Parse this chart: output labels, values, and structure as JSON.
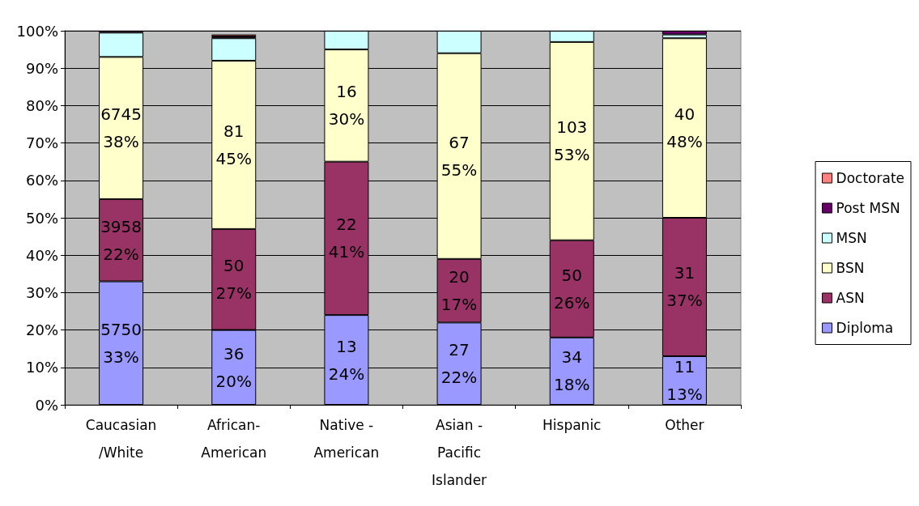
{
  "chart_data": {
    "type": "bar",
    "stacked": true,
    "categories": [
      "Caucasian\n/White",
      "African-\nAmerican",
      "Native -\nAmerican",
      "Asian -\nPacific\nIslander",
      "Hispanic",
      "Other"
    ],
    "series": [
      {
        "name": "Diploma",
        "color": "#9999ff",
        "values": [
          33,
          20,
          24,
          22,
          18,
          13
        ],
        "value_labels": [
          "5750\n33%",
          "36\n20%",
          "13\n24%",
          "27\n22%",
          "34\n18%",
          "11\n13%"
        ]
      },
      {
        "name": "ASN",
        "color": "#993366",
        "values": [
          22,
          27,
          41,
          17,
          26,
          37
        ],
        "value_labels": [
          "3958\n22%",
          "50\n27%",
          "22\n41%",
          "20\n17%",
          "50\n26%",
          "31\n37%"
        ]
      },
      {
        "name": "BSN",
        "color": "#ffffcc",
        "values": [
          38,
          45,
          30,
          55,
          53,
          48
        ],
        "value_labels": [
          "6745\n38%",
          "81\n45%",
          "16\n30%",
          "67\n55%",
          "103\n53%",
          "40\n48%"
        ]
      },
      {
        "name": "MSN",
        "color": "#ccffff",
        "values": [
          6.5,
          6,
          5,
          6,
          3,
          1
        ]
      },
      {
        "name": "Post MSN",
        "color": "#660066",
        "values": [
          0.5,
          0.5,
          null,
          null,
          null,
          1
        ]
      },
      {
        "name": "Doctorate",
        "color": "#ff8080",
        "values": [
          null,
          0.5,
          null,
          null,
          null,
          null
        ]
      }
    ],
    "ylim": [
      0,
      100
    ],
    "yticks": [
      {
        "value": 0,
        "label": "0%"
      },
      {
        "value": 10,
        "label": "10%"
      },
      {
        "value": 20,
        "label": "20%"
      },
      {
        "value": 30,
        "label": "30%"
      },
      {
        "value": 40,
        "label": "40%"
      },
      {
        "value": 50,
        "label": "50%"
      },
      {
        "value": 60,
        "label": "60%"
      },
      {
        "value": 70,
        "label": "70%"
      },
      {
        "value": 80,
        "label": "80%"
      },
      {
        "value": 90,
        "label": "90%"
      },
      {
        "value": 100,
        "label": "100%"
      }
    ],
    "grid": "y",
    "legend": "right"
  }
}
